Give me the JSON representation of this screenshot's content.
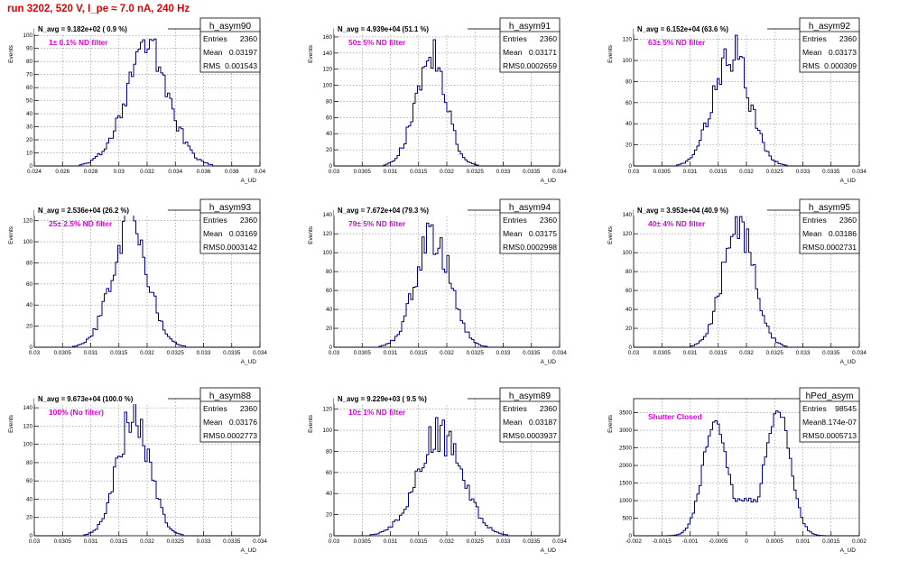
{
  "run_title": "run 3202,   520 V, I_pe ≈ 7.0 nA, 240 Hz",
  "colors": {
    "title": "#e00000",
    "filter_text": "#e000e0",
    "histogram_line": "#000080",
    "grid": "#888888",
    "axis": "#000000"
  },
  "chart_data": [
    {
      "type": "histogram",
      "name": "h_asym90",
      "title": "N_avg = 9.182e+02 ( 0.9 %)",
      "annotation": "1± 0.1% ND filter",
      "stats": [
        {
          "label": "Entries",
          "value": "2360"
        },
        {
          "label": "Mean",
          "value": "0.03197"
        },
        {
          "label": "RMS",
          "value": "0.001543"
        }
      ],
      "xlabel": "A_UD",
      "ylabel": "Events",
      "xlim": [
        0.024,
        0.04
      ],
      "ylim": [
        0,
        105
      ],
      "xticks": [
        0.024,
        0.026,
        0.028,
        0.03,
        0.032,
        0.034,
        0.036,
        0.038,
        0.04
      ],
      "xticklabels": [
        "0.024",
        "0.026",
        "0.028",
        "0.03",
        "0.032",
        "0.034",
        "0.036",
        "0.038",
        "0.04"
      ],
      "yticks": [
        0,
        10,
        20,
        30,
        40,
        50,
        60,
        70,
        80,
        90,
        100
      ],
      "grid": true,
      "peak": [
        0.03197,
        0.001543,
        90
      ]
    },
    {
      "type": "histogram",
      "name": "h_asym91",
      "title": "N_avg = 4.939e+04 (51.1 %)",
      "annotation": "50± 5% ND filter",
      "stats": [
        {
          "label": "Entries",
          "value": "2360"
        },
        {
          "label": "Mean",
          "value": "0.03171"
        },
        {
          "label": "RMS",
          "value": "0.0002659"
        }
      ],
      "xlabel": "A_UD",
      "ylabel": "Events",
      "xlim": [
        0.03,
        0.034
      ],
      "ylim": [
        0,
        170
      ],
      "xticks": [
        0.03,
        0.0305,
        0.031,
        0.0315,
        0.032,
        0.0325,
        0.033,
        0.0335,
        0.034
      ],
      "xticklabels": [
        "0.03",
        "0.0305",
        "0.031",
        "0.0315",
        "0.032",
        "0.0325",
        "0.033",
        "0.0335",
        "0.034"
      ],
      "yticks": [
        0,
        20,
        40,
        60,
        80,
        100,
        120,
        140,
        160
      ],
      "grid": true,
      "peak": [
        0.03171,
        0.0002659,
        140
      ]
    },
    {
      "type": "histogram",
      "name": "h_asym92",
      "title": "N_avg = 6.152e+04 (63.6 %)",
      "annotation": "63± 5% ND filter",
      "stats": [
        {
          "label": "Entries",
          "value": "2360"
        },
        {
          "label": "Mean",
          "value": "0.03173"
        },
        {
          "label": "RMS",
          "value": "0.000309"
        }
      ],
      "xlabel": "A_UD",
      "ylabel": "Events",
      "xlim": [
        0.03,
        0.034
      ],
      "ylim": [
        0,
        130
      ],
      "xticks": [
        0.03,
        0.0305,
        0.031,
        0.0315,
        0.032,
        0.0325,
        0.033,
        0.0335,
        0.034
      ],
      "xticklabels": [
        "0.03",
        "0.0305",
        "0.031",
        "0.0315",
        "0.032",
        "0.0325",
        "0.033",
        "0.0335",
        "0.034"
      ],
      "yticks": [
        0,
        20,
        40,
        60,
        80,
        100,
        120
      ],
      "grid": true,
      "peak": [
        0.03173,
        0.000309,
        112
      ]
    },
    {
      "type": "histogram",
      "name": "h_asym93",
      "title": "N_avg = 2.536e+04 (26.2 %)",
      "annotation": "25± 2.5% ND filter",
      "stats": [
        {
          "label": "Entries",
          "value": "2360"
        },
        {
          "label": "Mean",
          "value": "0.03169"
        },
        {
          "label": "RMS",
          "value": "0.0003142"
        }
      ],
      "xlabel": "A_UD",
      "ylabel": "Events",
      "xlim": [
        0.03,
        0.034
      ],
      "ylim": [
        0,
        130
      ],
      "xticks": [
        0.03,
        0.0305,
        0.031,
        0.0315,
        0.032,
        0.0325,
        0.033,
        0.0335,
        0.034
      ],
      "xticklabels": [
        "0.03",
        "0.0305",
        "0.031",
        "0.0315",
        "0.032",
        "0.0325",
        "0.033",
        "0.0335",
        "0.034"
      ],
      "yticks": [
        0,
        20,
        40,
        60,
        80,
        100,
        120
      ],
      "grid": true,
      "peak": [
        0.03169,
        0.0003142,
        118
      ]
    },
    {
      "type": "histogram",
      "name": "h_asym94",
      "title": "N_avg = 7.672e+04 (79.3 %)",
      "annotation": "79± 5% ND filter",
      "stats": [
        {
          "label": "Entries",
          "value": "2360"
        },
        {
          "label": "Mean",
          "value": "0.03175"
        },
        {
          "label": "RMS",
          "value": "0.0002998"
        }
      ],
      "xlabel": "A_UD",
      "ylabel": "Events",
      "xlim": [
        0.03,
        0.034
      ],
      "ylim": [
        0,
        145
      ],
      "xticks": [
        0.03,
        0.0305,
        0.031,
        0.0315,
        0.032,
        0.0325,
        0.033,
        0.0335,
        0.034
      ],
      "xticklabels": [
        "0.03",
        "0.0305",
        "0.031",
        "0.0315",
        "0.032",
        "0.0325",
        "0.033",
        "0.0335",
        "0.034"
      ],
      "yticks": [
        0,
        20,
        40,
        60,
        80,
        100,
        120,
        140
      ],
      "grid": true,
      "peak": [
        0.03175,
        0.0002998,
        122
      ]
    },
    {
      "type": "histogram",
      "name": "h_asym95",
      "title": "N_avg = 3.953e+04 (40.9 %)",
      "annotation": "40± 4% ND filter",
      "stats": [
        {
          "label": "Entries",
          "value": "2360"
        },
        {
          "label": "Mean",
          "value": "0.03186"
        },
        {
          "label": "RMS",
          "value": "0.0002731"
        }
      ],
      "xlabel": "A_UD",
      "ylabel": "Events",
      "xlim": [
        0.03,
        0.034
      ],
      "ylim": [
        0,
        145
      ],
      "xticks": [
        0.03,
        0.0305,
        0.031,
        0.0315,
        0.032,
        0.0325,
        0.033,
        0.0335,
        0.034
      ],
      "xticklabels": [
        "0.03",
        "0.0305",
        "0.031",
        "0.0315",
        "0.032",
        "0.0325",
        "0.033",
        "0.0335",
        "0.034"
      ],
      "yticks": [
        0,
        20,
        40,
        60,
        80,
        100,
        120,
        140
      ],
      "grid": true,
      "peak": [
        0.03186,
        0.0002731,
        130
      ]
    },
    {
      "type": "histogram",
      "name": "h_asym88",
      "title": "N_avg = 9.673e+04 (100.0 %)",
      "annotation": "100% (No filter)",
      "stats": [
        {
          "label": "Entries",
          "value": "2360"
        },
        {
          "label": "Mean",
          "value": "0.03176"
        },
        {
          "label": "RMS",
          "value": "0.0002773"
        }
      ],
      "xlabel": "A_UD",
      "ylabel": "Events",
      "xlim": [
        0.03,
        0.034
      ],
      "ylim": [
        0,
        150
      ],
      "xticks": [
        0.03,
        0.0305,
        0.031,
        0.0315,
        0.032,
        0.0325,
        0.033,
        0.0335,
        0.034
      ],
      "xticklabels": [
        "0.03",
        "0.0305",
        "0.031",
        "0.0315",
        "0.032",
        "0.0325",
        "0.033",
        "0.0335",
        "0.034"
      ],
      "yticks": [
        0,
        20,
        40,
        60,
        80,
        100,
        120,
        140
      ],
      "grid": true,
      "peak": [
        0.03176,
        0.0002773,
        135
      ]
    },
    {
      "type": "histogram",
      "name": "h_asym89",
      "title": "N_avg = 9.229e+03 ( 9.5 %)",
      "annotation": "10± 1% ND filter",
      "stats": [
        {
          "label": "Entries",
          "value": "2360"
        },
        {
          "label": "Mean",
          "value": "0.03187"
        },
        {
          "label": "RMS",
          "value": "0.0003937"
        }
      ],
      "xlabel": "A_UD",
      "ylabel": "Events",
      "xlim": [
        0.03,
        0.034
      ],
      "ylim": [
        0,
        130
      ],
      "xticks": [
        0.03,
        0.0305,
        0.031,
        0.0315,
        0.032,
        0.0325,
        0.033,
        0.0335,
        0.034
      ],
      "xticklabels": [
        "0.03",
        "0.0305",
        "0.031",
        "0.0315",
        "0.032",
        "0.0325",
        "0.033",
        "0.0335",
        "0.034"
      ],
      "yticks": [
        0,
        20,
        40,
        60,
        80,
        100,
        120
      ],
      "grid": true,
      "peak": [
        0.03187,
        0.0003937,
        98
      ]
    },
    {
      "type": "histogram",
      "name": "hPed_asym",
      "title": "",
      "annotation": "Shutter Closed",
      "stats": [
        {
          "label": "Entries",
          "value": "98545"
        },
        {
          "label": "Mean",
          "value": "8.174e-07"
        },
        {
          "label": "RMS",
          "value": "0.0005713"
        }
      ],
      "xlabel": "A_UD",
      "ylabel": "Events",
      "xlim": [
        -0.002,
        0.002
      ],
      "ylim": [
        0,
        3900
      ],
      "xticks": [
        -0.002,
        -0.0015,
        -0.001,
        -0.0005,
        0,
        0.0005,
        0.001,
        0.0015,
        0.002
      ],
      "xticklabels": [
        "-0.002",
        "-0.0015",
        "-0.001",
        "-0.0005",
        "0",
        "0.0005",
        "0.001",
        "0.0015",
        "0.002"
      ],
      "yticks": [
        0,
        500,
        1000,
        1500,
        2000,
        2500,
        3000,
        3500
      ],
      "grid": true,
      "bimodal": [
        [
          -0.00055,
          0.00022,
          3250
        ],
        [
          0.00055,
          0.00022,
          3600
        ]
      ],
      "valley": 1000
    }
  ]
}
